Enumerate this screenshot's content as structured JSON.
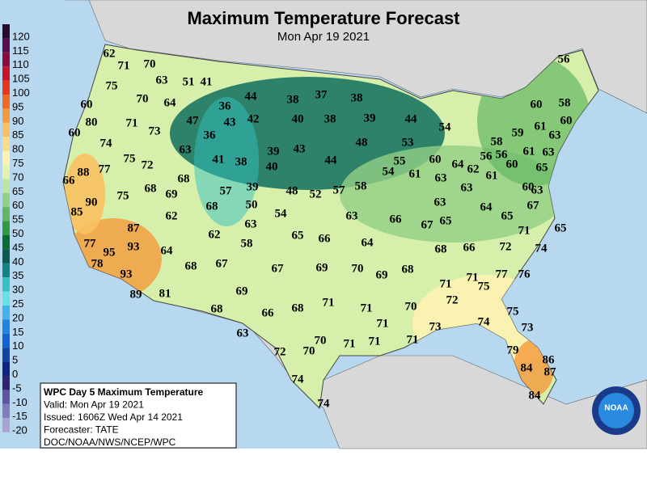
{
  "header": {
    "title": "Maximum Temperature Forecast",
    "subtitle": "Mon Apr 19 2021"
  },
  "legend": {
    "items": [
      {
        "label": 120,
        "color": "#2a0a2e"
      },
      {
        "label": 115,
        "color": "#56104e"
      },
      {
        "label": 110,
        "color": "#8a0c3c"
      },
      {
        "label": 105,
        "color": "#cc1428"
      },
      {
        "label": 100,
        "color": "#e8361e"
      },
      {
        "label": 95,
        "color": "#f06a22"
      },
      {
        "label": 90,
        "color": "#f59a3c"
      },
      {
        "label": 85,
        "color": "#f8c060"
      },
      {
        "label": 80,
        "color": "#fbdc88"
      },
      {
        "label": 75,
        "color": "#fdf2b0"
      },
      {
        "label": 70,
        "color": "#e4f4b0"
      },
      {
        "label": 65,
        "color": "#bfe6a0"
      },
      {
        "label": 60,
        "color": "#92d084"
      },
      {
        "label": 55,
        "color": "#62b862"
      },
      {
        "label": 50,
        "color": "#319a42"
      },
      {
        "label": 45,
        "color": "#0b6c32"
      },
      {
        "label": 40,
        "color": "#0c5a52"
      },
      {
        "label": 35,
        "color": "#128282"
      },
      {
        "label": 30,
        "color": "#32c2c2"
      },
      {
        "label": 25,
        "color": "#66e2e2"
      },
      {
        "label": 20,
        "color": "#44b2ea"
      },
      {
        "label": 15,
        "color": "#2282e0"
      },
      {
        "label": 10,
        "color": "#1262d0"
      },
      {
        "label": 5,
        "color": "#1242a2"
      },
      {
        "label": 0,
        "color": "#122282"
      },
      {
        "label": -5,
        "color": "#322272"
      },
      {
        "label": -10,
        "color": "#6252a2"
      },
      {
        "label": -15,
        "color": "#827aba"
      },
      {
        "label": -20,
        "color": "#aaa2d2"
      }
    ]
  },
  "map": {
    "temperatures": [
      62,
      71,
      70,
      63,
      51,
      41,
      75,
      70,
      64,
      36,
      44,
      37,
      38,
      38,
      56,
      60,
      80,
      71,
      47,
      43,
      42,
      40,
      38,
      39,
      44,
      54,
      60,
      58,
      60,
      73,
      36,
      61,
      60,
      59,
      63,
      74,
      63,
      39,
      43,
      48,
      53,
      58,
      56,
      56,
      61,
      63,
      75,
      72,
      41,
      38,
      40,
      44,
      55,
      60,
      64,
      62,
      61,
      60,
      65,
      88,
      77,
      66,
      68,
      54,
      61,
      63,
      63,
      57,
      39,
      48,
      52,
      57,
      58,
      68,
      69,
      75,
      60,
      63,
      90,
      68,
      50,
      63,
      65,
      64,
      67,
      85,
      62,
      54,
      63,
      66,
      67,
      65,
      87,
      63,
      62,
      65,
      66,
      64,
      71,
      65,
      77,
      93,
      95,
      64,
      58,
      68,
      66,
      72,
      74,
      78,
      68,
      67,
      67,
      69,
      70,
      68,
      69,
      77,
      76,
      93,
      71,
      71,
      75,
      89,
      81,
      69,
      72,
      71,
      68,
      71,
      70,
      68,
      66,
      75,
      71,
      73,
      74,
      73,
      63,
      70,
      71,
      71,
      71,
      72,
      70,
      79,
      86,
      84,
      87,
      74,
      74,
      84
    ]
  },
  "info_box": {
    "lines": [
      "WPC Day 5 Maximum Temperature",
      "Valid: Mon Apr 19 2021",
      "Issued: 1606Z Wed Apr 14 2021",
      "Forecaster: TATE",
      "DOC/NOAA/NWS/NCEP/WPC"
    ]
  },
  "logo": {
    "text": "NOAA"
  }
}
